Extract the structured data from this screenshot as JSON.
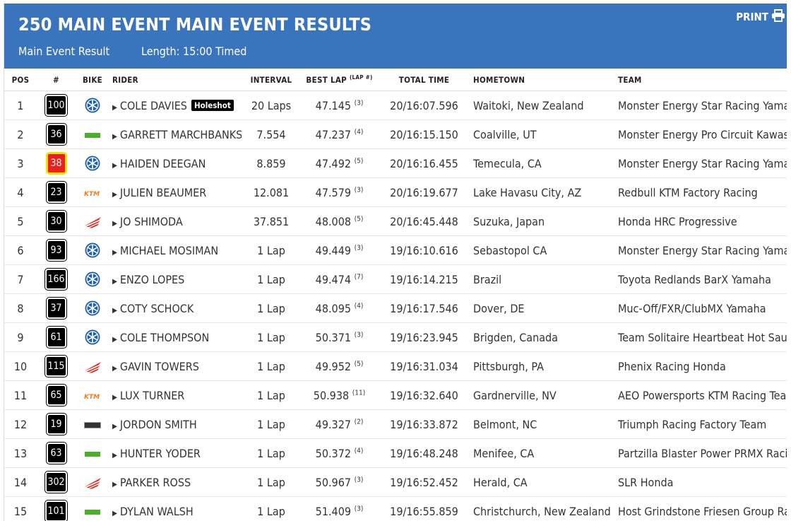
{
  "header": {
    "title": "250 MAIN EVENT MAIN EVENT RESULTS",
    "subtitle": "Main Event Result",
    "length": "Length: 15:00 Timed",
    "print_label": "PRINT"
  },
  "columns": {
    "pos": "POS",
    "num": "#",
    "bike": "BIKE",
    "rider": "RIDER",
    "interval": "INTERVAL",
    "best_lap": "BEST LAP",
    "lap_num": "(LAP #)",
    "total_time": "TOTAL TIME",
    "hometown": "HOMETOWN",
    "team": "TEAM"
  },
  "holeshot_label": "Holeshot",
  "colors": {
    "header_bg": "#3a74bd",
    "yamaha": "#1f5fb0",
    "honda": "#e0261a",
    "ktm": "#f47a1f",
    "kawasaki": "#4caf2c"
  },
  "rows": [
    {
      "pos": "1",
      "num": "100",
      "bike": "yamaha",
      "rider": "COLE DAVIES",
      "holeshot": true,
      "interval": "20 Laps",
      "best": "47.145",
      "lap": "(3)",
      "total": "20/16:07.596",
      "hometown": "Waitoki, New Zealand",
      "team": "Monster Energy Star Racing Yamaha"
    },
    {
      "pos": "2",
      "num": "36",
      "bike": "kawasaki",
      "rider": "GARRETT MARCHBANKS",
      "interval": "7.554",
      "best": "47.237",
      "lap": "(4)",
      "total": "20/16:15.150",
      "hometown": "Coalville, UT",
      "team": "Monster Energy Pro Circuit Kawasaki"
    },
    {
      "pos": "3",
      "num": "38",
      "red": true,
      "bike": "yamaha",
      "rider": "HAIDEN DEEGAN",
      "interval": "8.859",
      "best": "47.492",
      "lap": "(5)",
      "total": "20/16:16.455",
      "hometown": "Temecula, CA",
      "team": "Monster Energy Star Racing Yamaha"
    },
    {
      "pos": "4",
      "num": "23",
      "bike": "ktm",
      "rider": "JULIEN BEAUMER",
      "interval": "12.081",
      "best": "47.579",
      "lap": "(3)",
      "total": "20/16:19.677",
      "hometown": "Lake Havasu City, AZ",
      "team": "Redbull KTM Factory Racing"
    },
    {
      "pos": "5",
      "num": "30",
      "bike": "honda",
      "rider": "JO SHIMODA",
      "interval": "37.851",
      "best": "48.008",
      "lap": "(5)",
      "total": "20/16:45.448",
      "hometown": "Suzuka, Japan",
      "team": "Honda HRC Progressive"
    },
    {
      "pos": "6",
      "num": "93",
      "bike": "yamaha",
      "rider": "MICHAEL MOSIMAN",
      "interval": "1 Lap",
      "best": "49.449",
      "lap": "(3)",
      "total": "19/16:10.616",
      "hometown": "Sebastopol CA",
      "team": "Monster Energy Star Racing Yamaha"
    },
    {
      "pos": "7",
      "num": "166",
      "bike": "yamaha",
      "rider": "ENZO LOPES",
      "interval": "1 Lap",
      "best": "49.474",
      "lap": "(7)",
      "total": "19/16:14.215",
      "hometown": "Brazil",
      "team": "Toyota Redlands BarX Yamaha"
    },
    {
      "pos": "8",
      "num": "37",
      "bike": "yamaha",
      "rider": "COTY SCHOCK",
      "interval": "1 Lap",
      "best": "48.095",
      "lap": "(4)",
      "total": "19/16:17.546",
      "hometown": "Dover, DE",
      "team": "Muc-Off/FXR/ClubMX Yamaha"
    },
    {
      "pos": "9",
      "num": "61",
      "bike": "yamaha",
      "rider": "COLE THOMPSON",
      "interval": "1 Lap",
      "best": "50.371",
      "lap": "(3)",
      "total": "19/16:23.945",
      "hometown": "Brigden, Canada",
      "team": "Team Solitaire Heartbeat Hot Sauce"
    },
    {
      "pos": "10",
      "num": "115",
      "bike": "honda",
      "rider": "GAVIN TOWERS",
      "interval": "1 Lap",
      "best": "49.952",
      "lap": "(5)",
      "total": "19/16:31.034",
      "hometown": "Pittsburgh, PA",
      "team": "Phenix Racing Honda"
    },
    {
      "pos": "11",
      "num": "65",
      "bike": "ktm",
      "rider": "LUX TURNER",
      "interval": "1 Lap",
      "best": "50.938",
      "lap": "(11)",
      "total": "19/16:32.640",
      "hometown": "Gardnerville, NV",
      "team": "AEO Powersports KTM Racing Team"
    },
    {
      "pos": "12",
      "num": "19",
      "bike": "triumph",
      "rider": "JORDON SMITH",
      "interval": "1 Lap",
      "best": "49.327",
      "lap": "(2)",
      "total": "19/16:33.872",
      "hometown": "Belmont, NC",
      "team": "Triumph Racing Factory Team"
    },
    {
      "pos": "13",
      "num": "63",
      "bike": "kawasaki",
      "rider": "HUNTER YODER",
      "interval": "1 Lap",
      "best": "50.372",
      "lap": "(4)",
      "total": "19/16:48.248",
      "hometown": "Menifee, CA",
      "team": "Partzilla Blaster Power PRMX Racing"
    },
    {
      "pos": "14",
      "num": "302",
      "bike": "honda",
      "rider": "PARKER ROSS",
      "interval": "1 Lap",
      "best": "50.967",
      "lap": "(3)",
      "total": "19/16:52.452",
      "hometown": "Herald, CA",
      "team": "SLR Honda"
    },
    {
      "pos": "15",
      "num": "101",
      "bike": "kawasaki",
      "rider": "DYLAN WALSH",
      "interval": "1 Lap",
      "best": "51.409",
      "lap": "(3)",
      "total": "19/16:55.859",
      "hometown": "Christchurch, New Zealand",
      "team": "Host Grindstone Friesen Group Racing"
    }
  ]
}
